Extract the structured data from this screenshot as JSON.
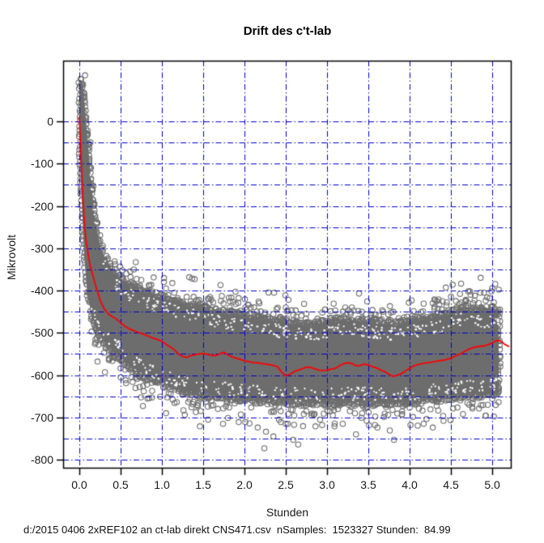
{
  "title": "Drift des c't-lab",
  "chart_data": {
    "type": "scatter",
    "title": "Drift des c't-lab",
    "xlabel": "Stunden",
    "ylabel": "Mikrovolt",
    "caption": "d:/2015 0406 2xREF102 an ct-lab direkt CNS471.csv  nSamples:  1523327 Stunden:  84.99",
    "stats": {
      "nSamples": "1523327",
      "Stunden": "84.99",
      "source_file": "d:/2015 0406 2xREF102 an ct-lab direkt CNS471.csv"
    },
    "xlim": [
      -0.196,
      5.225
    ],
    "ylim": [
      -819,
      143.5
    ],
    "x_ticks": [
      0,
      0.5,
      1.0,
      1.5,
      2.0,
      2.5,
      3.0,
      3.5,
      4.0,
      4.5,
      5.0
    ],
    "x_tick_labels": [
      "0.0",
      "0.5",
      "1.0",
      "1.5",
      "2.0",
      "2.5",
      "3.0",
      "3.5",
      "4.0",
      "4.5",
      "5.0"
    ],
    "y_ticks": [
      0,
      -100,
      -200,
      -300,
      -400,
      -500,
      -600,
      -700,
      -800
    ],
    "y_tick_labels": [
      "0",
      "-100",
      "-200",
      "-300",
      "-400",
      "-500",
      "-600",
      "-700",
      "-800"
    ],
    "grid": {
      "x_step": 0.5,
      "y_step": 50,
      "style": "dash-dot",
      "color": "#0000d0"
    },
    "colors": {
      "points": "#6d6d6d",
      "mean_line": "#ff0000",
      "axis": "#000000",
      "background": "#ffffff"
    },
    "legend": null,
    "series": [
      {
        "name": "samples-band",
        "type": "band",
        "comment": "dense envelope (top/bottom, Mikrovolt) of ~1.5M sample points",
        "x": [
          0.0,
          0.03,
          0.06,
          0.1,
          0.15,
          0.2,
          0.25,
          0.3,
          0.4,
          0.5,
          0.6,
          0.7,
          0.8,
          0.9,
          1.0,
          1.2,
          1.4,
          1.6,
          1.8,
          2.0,
          2.2,
          2.4,
          2.6,
          2.8,
          3.0,
          3.2,
          3.4,
          3.6,
          3.8,
          4.0,
          4.2,
          4.4,
          4.55,
          4.7,
          4.85,
          5.0,
          5.05,
          5.08
        ],
        "top": [
          95,
          110,
          60,
          -40,
          -150,
          -240,
          -285,
          -315,
          -348,
          -368,
          -383,
          -393,
          -401,
          -407,
          -413,
          -425,
          -434,
          -443,
          -451,
          -457,
          -463,
          -469,
          -473,
          -478,
          -472,
          -466,
          -469,
          -471,
          -476,
          -471,
          -464,
          -456,
          -445,
          -440,
          -446,
          -444,
          -444,
          -446
        ],
        "bottom": [
          -60,
          -200,
          -330,
          -420,
          -465,
          -495,
          -510,
          -525,
          -548,
          -562,
          -582,
          -596,
          -607,
          -616,
          -623,
          -637,
          -646,
          -652,
          -656,
          -659,
          -663,
          -666,
          -668,
          -669,
          -668,
          -667,
          -667,
          -668,
          -670,
          -666,
          -661,
          -656,
          -653,
          -650,
          -649,
          -646,
          -646,
          -645
        ]
      },
      {
        "name": "mean",
        "type": "line",
        "x": [
          0,
          0.02,
          0.04,
          0.06,
          0.08,
          0.1,
          0.13,
          0.16,
          0.2,
          0.25,
          0.3,
          0.35,
          0.4,
          0.45,
          0.5,
          0.55,
          0.6,
          0.65,
          0.7,
          0.75,
          0.8,
          0.85,
          0.9,
          0.95,
          1.0,
          1.05,
          1.1,
          1.15,
          1.2,
          1.25,
          1.3,
          1.35,
          1.4,
          1.45,
          1.5,
          1.55,
          1.6,
          1.65,
          1.7,
          1.75,
          1.8,
          1.85,
          1.9,
          1.95,
          2.0,
          2.05,
          2.1,
          2.15,
          2.2,
          2.25,
          2.3,
          2.35,
          2.4,
          2.45,
          2.5,
          2.55,
          2.6,
          2.65,
          2.7,
          2.75,
          2.8,
          2.85,
          2.9,
          2.95,
          3.0,
          3.05,
          3.1,
          3.15,
          3.2,
          3.25,
          3.3,
          3.35,
          3.4,
          3.45,
          3.5,
          3.55,
          3.6,
          3.65,
          3.7,
          3.75,
          3.8,
          3.85,
          3.9,
          3.95,
          4.0,
          4.05,
          4.1,
          4.15,
          4.2,
          4.25,
          4.3,
          4.35,
          4.4,
          4.45,
          4.5,
          4.55,
          4.6,
          4.65,
          4.7,
          4.75,
          4.8,
          4.85,
          4.9,
          4.95,
          5.0,
          5.05,
          5.1,
          5.15,
          5.2
        ],
        "y": [
          10,
          -80,
          -170,
          -235,
          -280,
          -305,
          -340,
          -362,
          -390,
          -422,
          -443,
          -455,
          -462,
          -467,
          -476,
          -484,
          -490,
          -494,
          -498,
          -501,
          -505,
          -509,
          -513,
          -516,
          -520,
          -527,
          -533,
          -540,
          -550,
          -556,
          -558,
          -554,
          -552,
          -550,
          -549,
          -551,
          -553,
          -554,
          -550,
          -546,
          -552,
          -557,
          -560,
          -563,
          -566,
          -568,
          -570,
          -571,
          -572,
          -574,
          -575,
          -577,
          -580,
          -593,
          -602,
          -598,
          -592,
          -588,
          -585,
          -581,
          -582,
          -585,
          -588,
          -589,
          -588,
          -586,
          -584,
          -578,
          -573,
          -571,
          -572,
          -578,
          -577,
          -574,
          -576,
          -580,
          -583,
          -588,
          -592,
          -598,
          -603,
          -600,
          -597,
          -590,
          -584,
          -578,
          -575,
          -573,
          -571,
          -570,
          -568,
          -566,
          -565,
          -563,
          -560,
          -555,
          -551,
          -546,
          -540,
          -536,
          -533,
          -532,
          -531,
          -528,
          -524,
          -518,
          -519,
          -527,
          -532
        ]
      },
      {
        "name": "outliers-high",
        "type": "scatter",
        "points": [
          [
            0.52,
            -352
          ],
          [
            0.57,
            -360
          ],
          [
            0.62,
            -368
          ],
          [
            0.66,
            -350
          ],
          [
            0.75,
            -375
          ],
          [
            0.85,
            -388
          ],
          [
            0.9,
            -369
          ],
          [
            1.05,
            -395
          ],
          [
            1.15,
            -405
          ],
          [
            1.3,
            -415
          ],
          [
            1.45,
            -422
          ],
          [
            1.62,
            -428
          ],
          [
            1.81,
            -417
          ],
          [
            1.82,
            -440
          ],
          [
            1.95,
            -448
          ],
          [
            2.01,
            -440
          ],
          [
            2.25,
            -452
          ],
          [
            2.5,
            -440
          ],
          [
            2.62,
            -447
          ],
          [
            2.75,
            -455
          ],
          [
            3.08,
            -431
          ],
          [
            3.22,
            -440
          ],
          [
            3.3,
            -440
          ],
          [
            3.42,
            -450
          ],
          [
            3.55,
            -446
          ],
          [
            3.68,
            -450
          ],
          [
            4.17,
            -431
          ],
          [
            4.28,
            -430
          ],
          [
            4.3,
            -421
          ],
          [
            4.33,
            -425
          ],
          [
            4.35,
            -421
          ],
          [
            4.45,
            -428
          ],
          [
            4.5,
            -415
          ],
          [
            4.56,
            -425
          ],
          [
            4.6,
            -432
          ],
          [
            4.61,
            -408
          ],
          [
            4.63,
            -428
          ],
          [
            4.68,
            -422
          ],
          [
            4.71,
            -402
          ],
          [
            4.73,
            -402
          ],
          [
            4.77,
            -430
          ],
          [
            4.79,
            -412
          ],
          [
            4.86,
            -370
          ],
          [
            4.9,
            -405
          ],
          [
            4.92,
            -424
          ],
          [
            4.97,
            -418
          ],
          [
            4.99,
            -402
          ],
          [
            5.0,
            -394
          ],
          [
            5.02,
            -428
          ],
          [
            5.08,
            -398
          ]
        ],
        "comment": "isolated samples above the dense band"
      },
      {
        "name": "outliers-low",
        "type": "scatter",
        "points": [
          [
            0.22,
            -568
          ],
          [
            0.31,
            -593
          ],
          [
            0.56,
            -612
          ],
          [
            0.73,
            -628
          ],
          [
            0.77,
            -673
          ],
          [
            0.78,
            -638
          ],
          [
            0.98,
            -651
          ],
          [
            1.05,
            -690
          ],
          [
            1.18,
            -664
          ],
          [
            1.26,
            -683
          ],
          [
            1.44,
            -666
          ],
          [
            1.46,
            -721
          ],
          [
            1.47,
            -685
          ],
          [
            1.56,
            -705
          ],
          [
            1.74,
            -715
          ],
          [
            1.93,
            -711
          ],
          [
            2.01,
            -711
          ],
          [
            2.06,
            -714
          ],
          [
            2.16,
            -724
          ],
          [
            2.24,
            -773
          ],
          [
            2.26,
            -734
          ],
          [
            2.35,
            -745
          ],
          [
            2.44,
            -711
          ],
          [
            2.5,
            -715
          ],
          [
            2.59,
            -753
          ],
          [
            2.65,
            -764
          ],
          [
            2.86,
            -721
          ],
          [
            2.94,
            -718
          ],
          [
            3.09,
            -721
          ],
          [
            3.19,
            -715
          ],
          [
            3.35,
            -740
          ],
          [
            3.48,
            -708
          ],
          [
            3.58,
            -718
          ],
          [
            3.61,
            -724
          ],
          [
            3.76,
            -731
          ],
          [
            3.81,
            -753
          ],
          [
            4.17,
            -715
          ],
          [
            4.28,
            -724
          ],
          [
            4.41,
            -708
          ],
          [
            4.76,
            -679
          ],
          [
            4.84,
            -679
          ],
          [
            5.02,
            -698
          ]
        ],
        "comment": "isolated samples below the dense band"
      }
    ]
  }
}
